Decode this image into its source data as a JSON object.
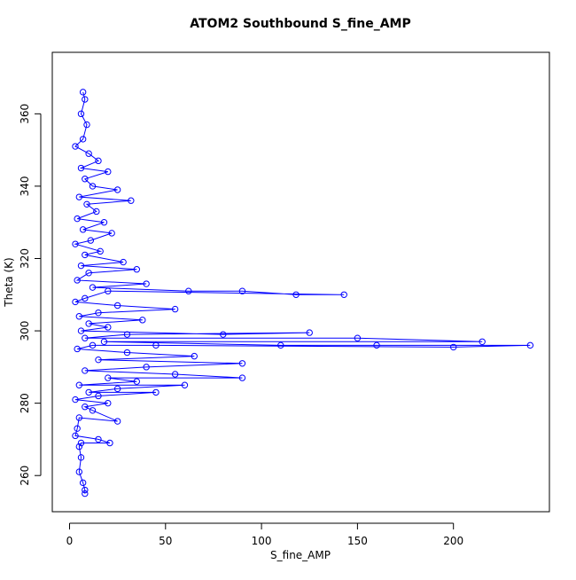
{
  "chart_data": {
    "type": "line",
    "title": "ATOM2 Southbound S_fine_AMP",
    "x_label": "S_fine_AMP",
    "y_label": "Theta (K)",
    "xlim": [
      -9,
      250
    ],
    "ylim": [
      250,
      377
    ],
    "xticks": [
      0,
      50,
      100,
      150,
      200
    ],
    "yticks": [
      260,
      280,
      300,
      320,
      340,
      360
    ],
    "series": [
      {
        "color": "#0000ff",
        "x": [
          7,
          8,
          6,
          9,
          7,
          3,
          10,
          15,
          6,
          20,
          8,
          12,
          25,
          5,
          32,
          9,
          14,
          4,
          18,
          7,
          22,
          11,
          3,
          16,
          8,
          28,
          6,
          35,
          10,
          4,
          40,
          12,
          62,
          90,
          118,
          143,
          20,
          8,
          3,
          25,
          55,
          15,
          5,
          38,
          10,
          20,
          6,
          80,
          125,
          30,
          8,
          150,
          215,
          18,
          110,
          160,
          240,
          200,
          45,
          12,
          4,
          30,
          65,
          15,
          90,
          40,
          8,
          55,
          90,
          20,
          35,
          5,
          60,
          25,
          10,
          45,
          15,
          3,
          20,
          8,
          12,
          25,
          5,
          4,
          3,
          15,
          21,
          6,
          5,
          6,
          5,
          7,
          8,
          8
        ],
        "values": [
          366,
          364,
          360,
          357,
          353,
          351,
          349,
          347,
          345,
          344,
          342,
          340,
          339,
          337,
          336,
          335,
          333,
          331,
          330,
          328,
          327,
          325,
          324,
          322,
          321,
          319,
          318,
          317,
          316,
          314,
          313,
          312,
          311,
          311,
          310,
          310,
          311,
          309,
          308,
          307,
          306,
          305,
          304,
          303,
          302,
          301,
          300,
          299,
          299.5,
          299,
          298,
          298,
          297,
          297,
          296,
          296,
          296,
          295.5,
          296,
          296,
          295,
          294,
          293,
          292,
          291,
          290,
          289,
          288,
          287,
          287,
          286,
          285,
          285,
          284,
          283,
          283,
          282,
          281,
          280,
          279,
          278,
          275,
          276,
          273,
          271,
          270,
          269,
          269,
          268,
          265,
          261,
          258,
          256,
          255
        ]
      }
    ]
  }
}
